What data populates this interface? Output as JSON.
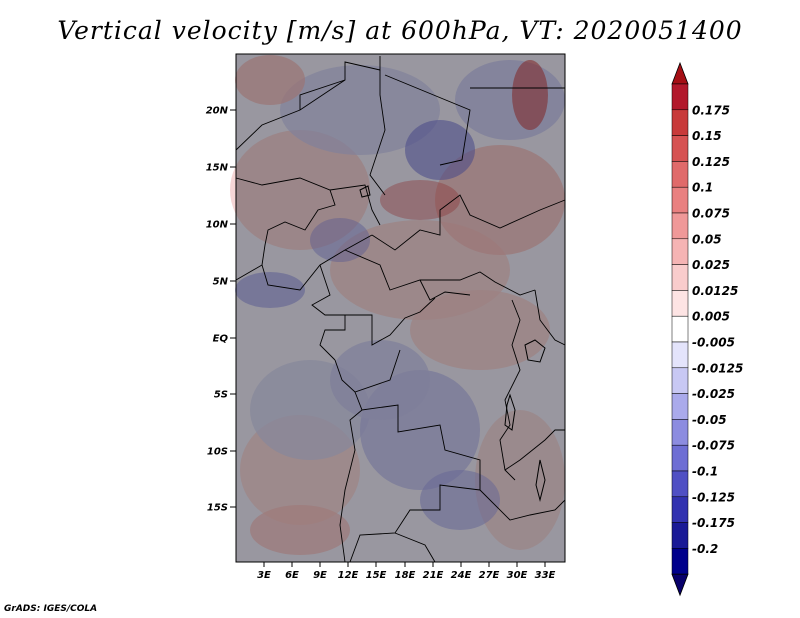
{
  "title": "Vertical velocity [m/s] at 600hPa, VT: 2020051400",
  "credit": "GrADS: IGES/COLA",
  "lat_labels": [
    "20N",
    "15N",
    "10N",
    "5N",
    "EQ",
    "5S",
    "10S",
    "15S"
  ],
  "lon_labels": [
    "3E",
    "6E",
    "9E",
    "12E",
    "15E",
    "18E",
    "21E",
    "24E",
    "27E",
    "30E",
    "33E"
  ],
  "colorbar": {
    "labels": [
      "0.175",
      "0.15",
      "0.125",
      "0.1",
      "0.075",
      "0.05",
      "0.025",
      "0.0125",
      "0.005",
      "-0.005",
      "-0.0125",
      "-0.025",
      "-0.05",
      "-0.075",
      "-0.1",
      "-0.125",
      "-0.175",
      "-0.2"
    ],
    "colors": [
      "#b2182b",
      "#c83a3a",
      "#d65252",
      "#e06a6a",
      "#e98080",
      "#ef9898",
      "#f5b4b4",
      "#f9cccc",
      "#fde4e4",
      "#ffffff",
      "#e4e4fb",
      "#c8c8f3",
      "#aaaaeb",
      "#8c8ce0",
      "#6e6ed4",
      "#5050c4",
      "#3232b0",
      "#1a1a96",
      "#00008b"
    ],
    "top_color": "#a50f15",
    "bottom_color": "#08006b"
  }
}
